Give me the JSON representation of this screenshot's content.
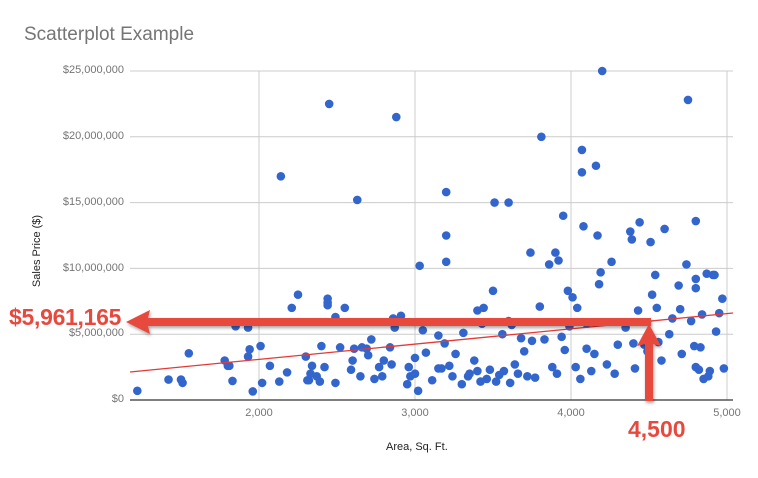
{
  "chart_data": {
    "type": "scatter",
    "title": "Scatterplot Example",
    "xlabel": "Area, Sq. Ft.",
    "ylabel": "Sales Price ($)",
    "xlim": [
      1200,
      5000
    ],
    "ylim": [
      0,
      25000000
    ],
    "x_ticks": [
      "2,000",
      "3,000",
      "4,000",
      "5,000"
    ],
    "y_ticks": [
      "$0",
      "$5,000,000",
      "$10,000,000",
      "$15,000,000",
      "$20,000,000",
      "$25,000,000"
    ],
    "grid": true,
    "series": [
      {
        "name": "Sales",
        "color": "#3366cc",
        "points": [
          [
            1220,
            700000
          ],
          [
            1420,
            1550000
          ],
          [
            1500,
            1550000
          ],
          [
            1510,
            1300000
          ],
          [
            1550,
            3550000
          ],
          [
            1780,
            3000000
          ],
          [
            1800,
            2600000
          ],
          [
            1810,
            2600000
          ],
          [
            1830,
            1450000
          ],
          [
            1850,
            5600000
          ],
          [
            1930,
            5500000
          ],
          [
            1940,
            3850000
          ],
          [
            2010,
            4100000
          ],
          [
            2020,
            1300000
          ],
          [
            1960,
            650000
          ],
          [
            1930,
            3300000
          ],
          [
            2070,
            2600000
          ],
          [
            2130,
            1400000
          ],
          [
            2140,
            17000000
          ],
          [
            2180,
            2100000
          ],
          [
            2210,
            7000000
          ],
          [
            2250,
            8000000
          ],
          [
            2300,
            3300000
          ],
          [
            2310,
            1500000
          ],
          [
            2320,
            1500000
          ],
          [
            2340,
            2600000
          ],
          [
            2330,
            2000000
          ],
          [
            2370,
            1800000
          ],
          [
            2400,
            4100000
          ],
          [
            2420,
            2500000
          ],
          [
            2390,
            1400000
          ],
          [
            2440,
            7700000
          ],
          [
            2440,
            7400000
          ],
          [
            2440,
            7200000
          ],
          [
            2450,
            22500000
          ],
          [
            2490,
            1300000
          ],
          [
            2520,
            4000000
          ],
          [
            2490,
            6300000
          ],
          [
            2550,
            7000000
          ],
          [
            2590,
            2300000
          ],
          [
            2600,
            3000000
          ],
          [
            2610,
            3900000
          ],
          [
            2630,
            15200000
          ],
          [
            2650,
            1800000
          ],
          [
            2660,
            4000000
          ],
          [
            2690,
            3900000
          ],
          [
            2720,
            4600000
          ],
          [
            2740,
            1600000
          ],
          [
            2770,
            2500000
          ],
          [
            2790,
            1800000
          ],
          [
            2800,
            3000000
          ],
          [
            2840,
            4000000
          ],
          [
            2860,
            6200000
          ],
          [
            2880,
            21500000
          ],
          [
            2870,
            5500000
          ],
          [
            2910,
            6400000
          ],
          [
            2950,
            1200000
          ],
          [
            2960,
            2500000
          ],
          [
            2970,
            1800000
          ],
          [
            3000,
            3200000
          ],
          [
            3020,
            700000
          ],
          [
            3030,
            10200000
          ],
          [
            3000,
            2000000
          ],
          [
            3070,
            3600000
          ],
          [
            3110,
            1500000
          ],
          [
            3150,
            2400000
          ],
          [
            3170,
            2400000
          ],
          [
            3190,
            4300000
          ],
          [
            3200,
            10500000
          ],
          [
            3200,
            12500000
          ],
          [
            3200,
            15800000
          ],
          [
            3220,
            2600000
          ],
          [
            3240,
            1800000
          ],
          [
            3260,
            3500000
          ],
          [
            3300,
            1200000
          ],
          [
            3310,
            5100000
          ],
          [
            3340,
            1800000
          ],
          [
            3350,
            2000000
          ],
          [
            3380,
            3000000
          ],
          [
            3400,
            2200000
          ],
          [
            3420,
            1400000
          ],
          [
            3440,
            7000000
          ],
          [
            3430,
            5800000
          ],
          [
            3460,
            1600000
          ],
          [
            3480,
            2300000
          ],
          [
            3500,
            8300000
          ],
          [
            3510,
            15000000
          ],
          [
            3520,
            1400000
          ],
          [
            3540,
            1900000
          ],
          [
            3560,
            5000000
          ],
          [
            3570,
            2200000
          ],
          [
            3600,
            15000000
          ],
          [
            3610,
            1300000
          ],
          [
            3620,
            5700000
          ],
          [
            3640,
            2700000
          ],
          [
            3660,
            2000000
          ],
          [
            3700,
            3700000
          ],
          [
            3720,
            1800000
          ],
          [
            3740,
            11200000
          ],
          [
            3750,
            4500000
          ],
          [
            3770,
            1700000
          ],
          [
            3800,
            7100000
          ],
          [
            3810,
            20000000
          ],
          [
            3830,
            4600000
          ],
          [
            3860,
            10300000
          ],
          [
            3900,
            11200000
          ],
          [
            3910,
            2000000
          ],
          [
            3920,
            10600000
          ],
          [
            3940,
            4800000
          ],
          [
            3950,
            14000000
          ],
          [
            3960,
            3800000
          ],
          [
            3980,
            8300000
          ],
          [
            3990,
            5600000
          ],
          [
            4010,
            7800000
          ],
          [
            4030,
            2500000
          ],
          [
            4040,
            7000000
          ],
          [
            4060,
            1600000
          ],
          [
            4070,
            19000000
          ],
          [
            4070,
            17300000
          ],
          [
            4080,
            13200000
          ],
          [
            4100,
            3900000
          ],
          [
            4130,
            2200000
          ],
          [
            4150,
            3500000
          ],
          [
            4160,
            17800000
          ],
          [
            4170,
            12500000
          ],
          [
            4180,
            8800000
          ],
          [
            4190,
            9700000
          ],
          [
            4200,
            25000000
          ],
          [
            4230,
            2700000
          ],
          [
            4260,
            10500000
          ],
          [
            4280,
            2000000
          ],
          [
            4300,
            4200000
          ],
          [
            4380,
            12800000
          ],
          [
            4390,
            12200000
          ],
          [
            4400,
            4300000
          ],
          [
            4410,
            2400000
          ],
          [
            4430,
            6800000
          ],
          [
            4440,
            13500000
          ],
          [
            4470,
            4200000
          ],
          [
            4490,
            3700000
          ],
          [
            4510,
            12000000
          ],
          [
            4520,
            8000000
          ],
          [
            4540,
            9500000
          ],
          [
            4550,
            7000000
          ],
          [
            4560,
            4400000
          ],
          [
            4580,
            3000000
          ],
          [
            4600,
            13000000
          ],
          [
            4630,
            5000000
          ],
          [
            4650,
            6200000
          ],
          [
            4690,
            8700000
          ],
          [
            4700,
            6900000
          ],
          [
            4710,
            3500000
          ],
          [
            4740,
            10300000
          ],
          [
            4750,
            22800000
          ],
          [
            4770,
            6000000
          ],
          [
            4790,
            4100000
          ],
          [
            4800,
            13600000
          ],
          [
            4800,
            9200000
          ],
          [
            4800,
            8500000
          ],
          [
            4800,
            2500000
          ],
          [
            4820,
            2300000
          ],
          [
            4830,
            4000000
          ],
          [
            4840,
            6500000
          ],
          [
            4850,
            1600000
          ],
          [
            4870,
            9600000
          ],
          [
            4880,
            1800000
          ],
          [
            4890,
            2200000
          ],
          [
            4910,
            9500000
          ],
          [
            4920,
            9500000
          ],
          [
            4930,
            5200000
          ],
          [
            4950,
            6600000
          ],
          [
            4970,
            7700000
          ],
          [
            4980,
            2400000
          ],
          [
            3400,
            6800000
          ],
          [
            3600,
            6000000
          ],
          [
            3150,
            4900000
          ],
          [
            3050,
            5300000
          ],
          [
            2850,
            2700000
          ],
          [
            2700,
            3400000
          ],
          [
            3680,
            4700000
          ],
          [
            3880,
            2500000
          ],
          [
            4100,
            5800000
          ],
          [
            4350,
            5500000
          ]
        ]
      }
    ],
    "trendline": {
      "color": "#e53935",
      "from": [
        1200,
        2100000
      ],
      "to": [
        5000,
        6500000
      ]
    },
    "annotations": [
      {
        "text": "$5,961,165",
        "type": "horizontal-arrow",
        "color": "#e8493e",
        "y": 5961165,
        "from_x": 4500
      },
      {
        "text": "4,500",
        "type": "vertical-arrow",
        "color": "#e8493e",
        "x": 4500,
        "to_y": 5961165
      }
    ]
  }
}
